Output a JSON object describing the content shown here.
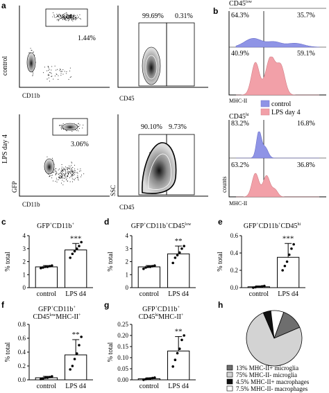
{
  "panel_letters": [
    "a",
    "b",
    "c",
    "d",
    "e",
    "f",
    "g",
    "h"
  ],
  "panel_a": {
    "row_labels": [
      "control",
      "LPS day 4"
    ],
    "y_axis_labels": [
      "GFP",
      "SSC"
    ],
    "x_axis_labels": [
      "CD11b",
      "CD45"
    ],
    "control_gate_pct": "1.44%",
    "control_split": [
      "99.69%",
      "0.31%"
    ],
    "lps_gate_pct": "3.06%",
    "lps_split": [
      "90.10%",
      "9.73%"
    ]
  },
  "panel_b": {
    "top_title": "CD45",
    "top_title_sup": "low",
    "bottom_title": "CD45",
    "bottom_title_sup": "hi",
    "x_label": "MHC-II",
    "y_label": "counts",
    "legend": [
      "control",
      "LPS day 4"
    ],
    "colors": {
      "control": "#8f94e6",
      "lps": "#f2a0a8"
    },
    "low_control": [
      "64.3%",
      "35.7%"
    ],
    "low_lps": [
      "40.9%",
      "59.1%"
    ],
    "hi_control": [
      "83.2%",
      "16.8%"
    ],
    "hi_lps": [
      "63.2%",
      "36.8%"
    ]
  },
  "chart_data": [
    {
      "panel": "c",
      "type": "bar",
      "title": "GFP",
      "title_parts": [
        "GFP",
        "+",
        "CD11b",
        "+"
      ],
      "ylabel": "% total",
      "categories": [
        "control",
        "LPS d4"
      ],
      "values": [
        1.6,
        2.9
      ],
      "errors": [
        0.1,
        0.5
      ],
      "points": [
        [
          1.5,
          1.55,
          1.6,
          1.6,
          1.65,
          1.7
        ],
        [
          2.3,
          2.6,
          2.8,
          3.0,
          3.2,
          3.5
        ]
      ],
      "ylim": [
        0,
        4
      ],
      "ticks": [
        "0",
        "1",
        "2",
        "3",
        "4"
      ],
      "sig": "***"
    },
    {
      "panel": "d",
      "type": "bar",
      "title": "GFP",
      "title_parts": [
        "GFP",
        "+",
        "CD11b",
        "+",
        "CD45",
        "low"
      ],
      "ylabel": "% total",
      "categories": [
        "control",
        "LPS d4"
      ],
      "values": [
        1.6,
        2.6
      ],
      "errors": [
        0.1,
        0.6
      ],
      "points": [
        [
          1.45,
          1.55,
          1.6,
          1.6,
          1.65,
          1.7
        ],
        [
          1.9,
          2.3,
          2.5,
          2.7,
          3.0,
          3.2
        ]
      ],
      "ylim": [
        0,
        4
      ],
      "ticks": [
        "0",
        "1",
        "2",
        "3",
        "4"
      ],
      "sig": "**"
    },
    {
      "panel": "e",
      "type": "bar",
      "title": "GFP",
      "title_parts": [
        "GFP",
        "+",
        "CD11b",
        "+",
        "CD45",
        "hi"
      ],
      "ylabel": "% total",
      "categories": [
        "control",
        "LPS d4"
      ],
      "values": [
        0.01,
        0.35
      ],
      "errors": [
        0.01,
        0.16
      ],
      "points": [
        [
          0.0,
          0.005,
          0.01,
          0.01,
          0.015,
          0.02
        ],
        [
          0.2,
          0.25,
          0.3,
          0.38,
          0.45,
          0.5
        ]
      ],
      "ylim": [
        0,
        0.6
      ],
      "ticks": [
        "0.0",
        "0.2",
        "0.4",
        "0.6"
      ],
      "sig": "***"
    },
    {
      "panel": "f",
      "type": "bar",
      "title": "GFP",
      "title_parts": [
        "GFP",
        "+",
        "CD11b",
        "+",
        "CD45",
        "low",
        "MHC-II",
        "+"
      ],
      "ylabel": "% total",
      "categories": [
        "control",
        "LPS d4"
      ],
      "values": [
        0.03,
        0.36
      ],
      "errors": [
        0.02,
        0.22
      ],
      "points": [
        [
          0.01,
          0.02,
          0.03,
          0.03,
          0.04,
          0.05
        ],
        [
          0.15,
          0.2,
          0.3,
          0.38,
          0.5,
          0.62
        ]
      ],
      "ylim": [
        0,
        0.8
      ],
      "ticks": [
        "0.0",
        "0.2",
        "0.4",
        "0.6",
        "0.8"
      ],
      "sig": "**"
    },
    {
      "panel": "g",
      "type": "bar",
      "title": "GFP",
      "title_parts": [
        "GFP",
        "+",
        "CD11b",
        "+",
        "CD45",
        "hi",
        "MHC-II",
        "+"
      ],
      "ylabel": "% total",
      "categories": [
        "control",
        "LPS d4"
      ],
      "values": [
        0.005,
        0.13
      ],
      "errors": [
        0.004,
        0.065
      ],
      "points": [
        [
          0.0,
          0.003,
          0.005,
          0.006,
          0.008,
          0.01
        ],
        [
          0.06,
          0.09,
          0.12,
          0.14,
          0.18,
          0.2
        ]
      ],
      "ylim": [
        0,
        0.25
      ],
      "ticks": [
        "0.00",
        "0.05",
        "0.10",
        "0.15",
        "0.20",
        "0.25"
      ],
      "sig": "**"
    },
    {
      "panel": "h",
      "type": "pie",
      "labels": [
        "MHC-II+ microglia",
        "MHC-II- microglia",
        "MHC-II+ macrophages",
        "MHC-II- macrophages"
      ],
      "values": [
        13,
        75,
        4.5,
        7.5
      ],
      "legend_pct": [
        "13%",
        "75%",
        "4.5%",
        "7.5%"
      ],
      "colors": [
        "#6e6e6e",
        "#d3d3d3",
        "#111111",
        "#ffffff"
      ]
    }
  ]
}
